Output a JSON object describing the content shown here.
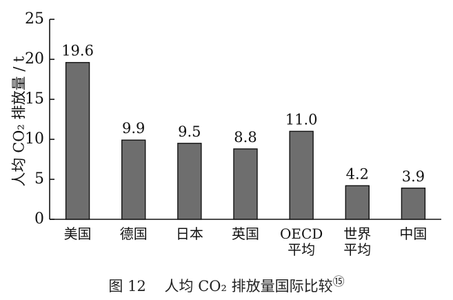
{
  "chart_data": {
    "type": "bar",
    "categories": [
      [
        "美国"
      ],
      [
        "德国"
      ],
      [
        "日本"
      ],
      [
        "英国"
      ],
      [
        "OECD",
        "平均"
      ],
      [
        "世界",
        "平均"
      ],
      [
        "中国"
      ]
    ],
    "values": [
      19.6,
      9.9,
      9.5,
      8.8,
      11.0,
      4.2,
      3.9
    ],
    "value_labels": [
      "19.6",
      "9.9",
      "9.5",
      "8.8",
      "11.0",
      "4.2",
      "3.9"
    ],
    "ylabel": "人均 CO₂ 排放量 / t",
    "ylim": [
      0,
      25
    ],
    "yticks": [
      0,
      5,
      10,
      15,
      20,
      25
    ],
    "bar_color": "#6e6e6e",
    "grid": false
  },
  "caption": {
    "figure_number": "图 12",
    "title": "人均 CO₂ 排放量国际比较",
    "note_mark": "⑮"
  }
}
